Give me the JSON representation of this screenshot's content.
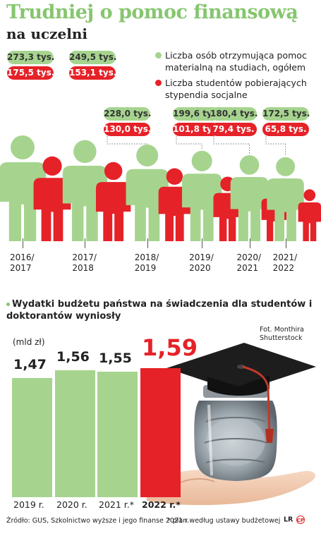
{
  "title": "Trudniej o pomoc finansową",
  "subtitle": "na uczelni",
  "legend": {
    "green_label": "Liczba osób otrzymująca pomoc materialną na studiach, ogółem",
    "red_label": "Liczba studentów pobierających stypendia socjalne",
    "green_color": "#a6d48f",
    "red_color": "#e52228"
  },
  "section2": {
    "title": "Wydatki budżetu państwa na świadczenia dla studentów i doktorantów wyniosły",
    "unit": "(mld zł)",
    "photo_credit_line1": "Fot. Monthira",
    "photo_credit_line2": "Shutterstock"
  },
  "footer": {
    "source": "Źródło: GUS, Szkolnictwo wyższe i jego finanse 2021 r.",
    "note": "* plan według ustawy budżetowej",
    "logo_text": "LR",
    "logo_badge": "CP"
  },
  "chart_data": [
    {
      "type": "bar",
      "categories": [
        "2016/\n2017",
        "2017/\n2018",
        "2018/\n2019",
        "2019/\n2020",
        "2020/\n2021",
        "2021/\n2022"
      ],
      "category_lines": [
        [
          "2016/",
          "2017"
        ],
        [
          "2017/",
          "2018"
        ],
        [
          "2018/",
          "2019"
        ],
        [
          "2019/",
          "2020"
        ],
        [
          "2020/",
          "2021"
        ],
        [
          "2021/",
          "2022"
        ]
      ],
      "series": [
        {
          "name": "Liczba osób otrzymująca pomoc materialną na studiach, ogółem",
          "values": [
            273.3,
            249.5,
            228.0,
            199.6,
            180.4,
            172.5
          ],
          "labels": [
            "273,3 tys.",
            "249,5 tys.",
            "228,0 tys.",
            "199,6 tys.",
            "180,4 tys.",
            "172,5 tys."
          ],
          "color": "#a6d48f"
        },
        {
          "name": "Liczba studentów pobierających stypendia socjalne",
          "values": [
            175.5,
            153.1,
            130.0,
            101.8,
            79.4,
            65.8
          ],
          "labels": [
            "175,5 tys.",
            "153,1 tys.",
            "130,0 tys.",
            "101,8 tys.",
            "79,4 tys.",
            "65,8 tys."
          ],
          "color": "#e52228"
        }
      ],
      "unit": "tys."
    },
    {
      "type": "bar",
      "title": "Wydatki budżetu państwa na świadczenia dla studentów i doktorantów wyniosły",
      "ylabel": "(mld zł)",
      "categories": [
        "2019 r.",
        "2020 r.",
        "2021 r.*",
        "2022 r.*"
      ],
      "values": [
        1.47,
        1.56,
        1.55,
        1.59
      ],
      "labels": [
        "1,47",
        "1,56",
        "1,55",
        "1,59"
      ],
      "colors": [
        "#a6d48f",
        "#a6d48f",
        "#a6d48f",
        "#e52228"
      ]
    }
  ]
}
